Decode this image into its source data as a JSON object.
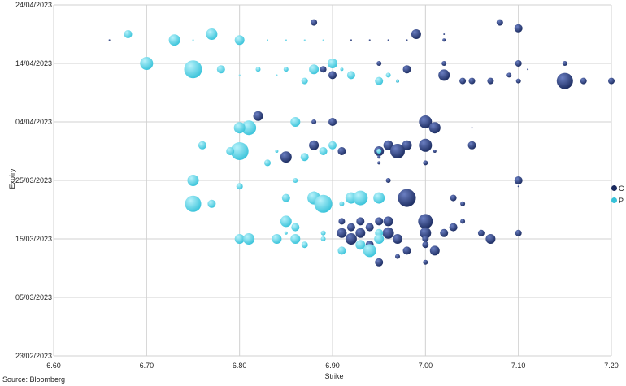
{
  "chart_data": {
    "type": "scatter",
    "xlabel": "Strike",
    "ylabel": "Expiry",
    "xlim": [
      6.6,
      7.2
    ],
    "x_ticks": [
      "6.60",
      "6.70",
      "6.80",
      "6.90",
      "7.00",
      "7.10",
      "7.20"
    ],
    "ylim": [
      "2023-02-23",
      "2023-04-24"
    ],
    "y_ticks": [
      "23/02/2023",
      "05/03/2023",
      "15/03/2023",
      "25/03/2023",
      "04/04/2023",
      "14/04/2023",
      "24/04/2023"
    ],
    "grid": {
      "horizontal": true,
      "vertical": true
    },
    "legend_position": "right",
    "source": "Source: Bloomberg",
    "series": [
      {
        "name": "C",
        "color": "#1a2a5e",
        "points": [
          [
            "2023-04-21",
            6.88,
            4
          ],
          [
            "2023-04-21",
            7.08,
            4
          ],
          [
            "2023-04-20",
            7.1,
            5
          ],
          [
            "2023-04-19",
            6.99,
            6
          ],
          [
            "2023-04-19",
            7.02,
            1
          ],
          [
            "2023-04-18",
            6.66,
            1
          ],
          [
            "2023-04-18",
            6.92,
            1
          ],
          [
            "2023-04-18",
            6.94,
            1
          ],
          [
            "2023-04-18",
            6.96,
            1
          ],
          [
            "2023-04-18",
            6.98,
            1
          ],
          [
            "2023-04-18",
            7.02,
            2
          ],
          [
            "2023-04-14",
            6.95,
            3
          ],
          [
            "2023-04-14",
            7.02,
            3
          ],
          [
            "2023-04-14",
            7.1,
            4
          ],
          [
            "2023-04-14",
            7.15,
            3
          ],
          [
            "2023-04-13",
            6.89,
            4
          ],
          [
            "2023-04-13",
            6.98,
            5
          ],
          [
            "2023-04-13",
            7.11,
            1
          ],
          [
            "2023-04-12",
            6.9,
            5
          ],
          [
            "2023-04-12",
            7.02,
            7
          ],
          [
            "2023-04-12",
            7.09,
            3
          ],
          [
            "2023-04-11",
            6.97,
            2
          ],
          [
            "2023-04-11",
            7.04,
            4
          ],
          [
            "2023-04-11",
            7.05,
            4
          ],
          [
            "2023-04-11",
            7.07,
            4
          ],
          [
            "2023-04-11",
            7.1,
            3
          ],
          [
            "2023-04-11",
            7.15,
            10
          ],
          [
            "2023-04-11",
            7.17,
            4
          ],
          [
            "2023-04-11",
            7.2,
            4
          ],
          [
            "2023-04-05",
            6.82,
            6
          ],
          [
            "2023-04-04",
            6.88,
            3
          ],
          [
            "2023-04-04",
            6.9,
            5
          ],
          [
            "2023-04-04",
            7.0,
            8
          ],
          [
            "2023-04-03",
            7.01,
            7
          ],
          [
            "2023-04-03",
            7.05,
            1
          ],
          [
            "2023-03-31",
            6.88,
            6
          ],
          [
            "2023-03-31",
            6.96,
            6
          ],
          [
            "2023-03-31",
            6.98,
            6
          ],
          [
            "2023-03-31",
            7.0,
            8
          ],
          [
            "2023-03-31",
            7.05,
            5
          ],
          [
            "2023-03-30",
            6.91,
            5
          ],
          [
            "2023-03-30",
            6.95,
            6
          ],
          [
            "2023-03-30",
            6.97,
            9
          ],
          [
            "2023-03-30",
            7.01,
            2
          ],
          [
            "2023-03-29",
            6.85,
            7
          ],
          [
            "2023-03-29",
            6.95,
            2
          ],
          [
            "2023-03-28",
            6.95,
            2
          ],
          [
            "2023-03-28",
            7.0,
            3
          ],
          [
            "2023-03-25",
            6.96,
            3
          ],
          [
            "2023-03-25",
            7.1,
            5
          ],
          [
            "2023-03-24",
            7.1,
            1
          ],
          [
            "2023-03-22",
            6.98,
            11
          ],
          [
            "2023-03-22",
            7.03,
            4
          ],
          [
            "2023-03-21",
            7.04,
            3
          ],
          [
            "2023-03-18",
            6.91,
            4
          ],
          [
            "2023-03-18",
            6.93,
            5
          ],
          [
            "2023-03-18",
            6.95,
            5
          ],
          [
            "2023-03-18",
            6.96,
            6
          ],
          [
            "2023-03-18",
            7.0,
            9
          ],
          [
            "2023-03-18",
            7.04,
            3
          ],
          [
            "2023-03-17",
            6.92,
            5
          ],
          [
            "2023-03-17",
            6.94,
            5
          ],
          [
            "2023-03-17",
            7.03,
            5
          ],
          [
            "2023-03-16",
            6.91,
            6
          ],
          [
            "2023-03-16",
            6.93,
            6
          ],
          [
            "2023-03-16",
            6.96,
            7
          ],
          [
            "2023-03-16",
            7.0,
            7
          ],
          [
            "2023-03-16",
            7.02,
            5
          ],
          [
            "2023-03-16",
            7.06,
            4
          ],
          [
            "2023-03-16",
            7.1,
            4
          ],
          [
            "2023-03-15",
            6.92,
            7
          ],
          [
            "2023-03-15",
            6.97,
            6
          ],
          [
            "2023-03-15",
            7.0,
            4
          ],
          [
            "2023-03-15",
            7.07,
            6
          ],
          [
            "2023-03-14",
            6.94,
            5
          ],
          [
            "2023-03-14",
            7.0,
            4
          ],
          [
            "2023-03-13",
            6.98,
            5
          ],
          [
            "2023-03-13",
            7.01,
            6
          ],
          [
            "2023-03-12",
            6.97,
            3
          ],
          [
            "2023-03-11",
            6.95,
            5
          ],
          [
            "2023-03-11",
            7.0,
            3
          ]
        ]
      },
      {
        "name": "P",
        "color": "#36c2d9",
        "points": [
          [
            "2023-04-19",
            6.68,
            5
          ],
          [
            "2023-04-19",
            6.77,
            7
          ],
          [
            "2023-04-18",
            6.73,
            7
          ],
          [
            "2023-04-18",
            6.8,
            6
          ],
          [
            "2023-04-18",
            6.75,
            1
          ],
          [
            "2023-04-18",
            6.83,
            1
          ],
          [
            "2023-04-18",
            6.85,
            1
          ],
          [
            "2023-04-18",
            6.87,
            1
          ],
          [
            "2023-04-18",
            6.89,
            1
          ],
          [
            "2023-04-14",
            6.7,
            8
          ],
          [
            "2023-04-14",
            6.9,
            6
          ],
          [
            "2023-04-13",
            6.75,
            11
          ],
          [
            "2023-04-13",
            6.78,
            5
          ],
          [
            "2023-04-13",
            6.82,
            3
          ],
          [
            "2023-04-13",
            6.85,
            3
          ],
          [
            "2023-04-13",
            6.88,
            6
          ],
          [
            "2023-04-13",
            6.91,
            2
          ],
          [
            "2023-04-12",
            6.8,
            1
          ],
          [
            "2023-04-12",
            6.84,
            1
          ],
          [
            "2023-04-12",
            6.92,
            5
          ],
          [
            "2023-04-12",
            6.96,
            3
          ],
          [
            "2023-04-11",
            6.87,
            4
          ],
          [
            "2023-04-11",
            6.95,
            5
          ],
          [
            "2023-04-11",
            6.97,
            2
          ],
          [
            "2023-04-04",
            6.86,
            6
          ],
          [
            "2023-04-03",
            6.81,
            9
          ],
          [
            "2023-04-03",
            6.8,
            7
          ],
          [
            "2023-03-31",
            6.76,
            5
          ],
          [
            "2023-03-31",
            6.9,
            5
          ],
          [
            "2023-03-30",
            6.8,
            11
          ],
          [
            "2023-03-30",
            6.79,
            5
          ],
          [
            "2023-03-30",
            6.84,
            2
          ],
          [
            "2023-03-30",
            6.89,
            5
          ],
          [
            "2023-03-30",
            6.95,
            3
          ],
          [
            "2023-03-29",
            6.87,
            5
          ],
          [
            "2023-03-28",
            6.83,
            4
          ],
          [
            "2023-03-25",
            6.75,
            7
          ],
          [
            "2023-03-25",
            6.86,
            3
          ],
          [
            "2023-03-24",
            6.8,
            4
          ],
          [
            "2023-03-23",
            6.88,
            1
          ],
          [
            "2023-03-22",
            6.85,
            5
          ],
          [
            "2023-03-22",
            6.88,
            8
          ],
          [
            "2023-03-22",
            6.92,
            7
          ],
          [
            "2023-03-22",
            6.93,
            9
          ],
          [
            "2023-03-22",
            6.95,
            7
          ],
          [
            "2023-03-21",
            6.75,
            10
          ],
          [
            "2023-03-21",
            6.77,
            5
          ],
          [
            "2023-03-21",
            6.89,
            11
          ],
          [
            "2023-03-21",
            6.91,
            3
          ],
          [
            "2023-03-18",
            6.85,
            7
          ],
          [
            "2023-03-17",
            6.86,
            5
          ],
          [
            "2023-03-16",
            6.85,
            2
          ],
          [
            "2023-03-16",
            6.89,
            3
          ],
          [
            "2023-03-16",
            6.95,
            5
          ],
          [
            "2023-03-15",
            6.8,
            6
          ],
          [
            "2023-03-15",
            6.81,
            7
          ],
          [
            "2023-03-15",
            6.84,
            6
          ],
          [
            "2023-03-15",
            6.86,
            6
          ],
          [
            "2023-03-15",
            6.89,
            3
          ],
          [
            "2023-03-15",
            6.95,
            6
          ],
          [
            "2023-03-14",
            6.87,
            4
          ],
          [
            "2023-03-14",
            6.93,
            6
          ],
          [
            "2023-03-13",
            6.91,
            5
          ],
          [
            "2023-03-13",
            6.94,
            8
          ]
        ]
      }
    ]
  }
}
